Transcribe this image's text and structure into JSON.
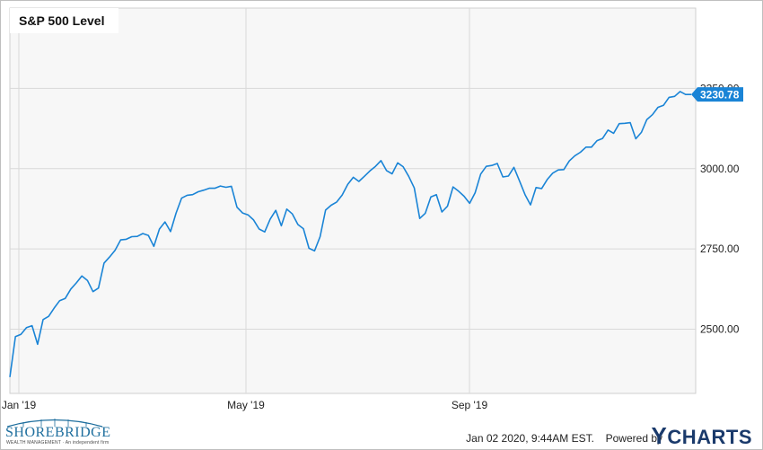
{
  "chart_data": {
    "type": "line",
    "title": "S&P 500 Level",
    "xlabel": "",
    "ylabel": "",
    "x_tick_labels": [
      "Jan '19",
      "May '19",
      "Sep '19"
    ],
    "y_tick_labels": [
      "2500.00",
      "2750.00",
      "3000.00",
      "3250.00"
    ],
    "y_ticks": [
      2500,
      2750,
      3000,
      3250
    ],
    "ylim": [
      2300,
      3500
    ],
    "last_value_label": "3230.78",
    "grid": true,
    "series": [
      {
        "values": [
          2351,
          2477,
          2484,
          2505,
          2511,
          2453,
          2530,
          2540,
          2566,
          2589,
          2596,
          2625,
          2644,
          2666,
          2652,
          2617,
          2628,
          2706,
          2725,
          2746,
          2778,
          2780,
          2788,
          2789,
          2798,
          2792,
          2758,
          2812,
          2834,
          2804,
          2861,
          2908,
          2917,
          2919,
          2928,
          2933,
          2939,
          2939,
          2946,
          2942,
          2945,
          2880,
          2862,
          2856,
          2840,
          2812,
          2803,
          2843,
          2870,
          2822,
          2874,
          2859,
          2826,
          2813,
          2752,
          2744,
          2788,
          2871,
          2886,
          2896,
          2918,
          2951,
          2973,
          2960,
          2976,
          2993,
          3007,
          3025,
          2994,
          2984,
          3018,
          3006,
          2976,
          2940,
          2845,
          2861,
          2912,
          2919,
          2865,
          2883,
          2943,
          2930,
          2914,
          2892,
          2925,
          2983,
          3007,
          3010,
          3016,
          2974,
          2977,
          3004,
          2962,
          2919,
          2887,
          2941,
          2938,
          2966,
          2986,
          2996,
          2997,
          3024,
          3040,
          3051,
          3067,
          3067,
          3087,
          3094,
          3120,
          3110,
          3140,
          3141,
          3143,
          3093,
          3113,
          3153,
          3168,
          3191,
          3197,
          3222,
          3225,
          3240,
          3231,
          3231
        ]
      }
    ]
  },
  "footer": {
    "timestamp": "Jan 02 2020, 9:44AM EST.",
    "powered_by": "Powered by",
    "brand_initial": "Y",
    "brand_rest": "CHARTS"
  },
  "logo": {
    "name": "SHOREBRIDGE",
    "subtitle": "WEALTH MANAGEMENT · An independent firm"
  },
  "colors": {
    "line": "#1a84d6",
    "plot_bg": "#f7f7f7",
    "grid": "#d9d9d9",
    "label_bg": "#1a84d6"
  }
}
